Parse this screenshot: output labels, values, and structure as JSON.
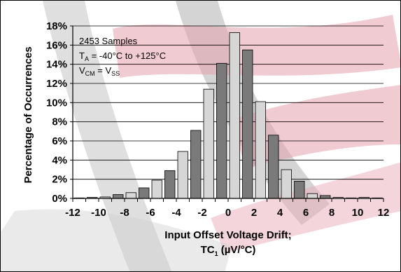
{
  "chart_data": {
    "type": "bar",
    "x_label_line1": "Input Offset Voltage Drift;",
    "x_label_line2_main": "TC",
    "x_label_line2_sub": "1",
    "x_label_line2_unit": " (µV/°C)",
    "ylabel": "Percentage of Occurrences",
    "ylim": [
      0,
      18
    ],
    "xlim": [
      -12,
      12
    ],
    "y_ticks": [
      "0%",
      "2%",
      "4%",
      "6%",
      "8%",
      "10%",
      "12%",
      "14%",
      "16%",
      "18%"
    ],
    "x_ticks": [
      "-12",
      "-10",
      "-8",
      "-6",
      "-4",
      "-2",
      "0",
      "2",
      "4",
      "6",
      "8",
      "10",
      "12"
    ],
    "bin_width": 1,
    "bins": [
      {
        "x": -11.5,
        "value": 0.05
      },
      {
        "x": -10.5,
        "value": 0.1
      },
      {
        "x": -9.5,
        "value": 0.15
      },
      {
        "x": -8.5,
        "value": 0.4
      },
      {
        "x": -7.5,
        "value": 0.6
      },
      {
        "x": -6.5,
        "value": 1.1
      },
      {
        "x": -5.5,
        "value": 1.9
      },
      {
        "x": -4.5,
        "value": 2.9
      },
      {
        "x": -3.5,
        "value": 4.9
      },
      {
        "x": -2.5,
        "value": 7.1
      },
      {
        "x": -1.5,
        "value": 11.4
      },
      {
        "x": -0.5,
        "value": 14.1
      },
      {
        "x": 0.5,
        "value": 17.3
      },
      {
        "x": 1.5,
        "value": 15.5
      },
      {
        "x": 2.5,
        "value": 10.1
      },
      {
        "x": 3.5,
        "value": 6.6
      },
      {
        "x": 4.5,
        "value": 3.0
      },
      {
        "x": 5.5,
        "value": 1.8
      },
      {
        "x": 6.5,
        "value": 0.5
      },
      {
        "x": 7.5,
        "value": 0.3
      },
      {
        "x": 8.5,
        "value": 0.1
      },
      {
        "x": 9.5,
        "value": 0.05
      },
      {
        "x": 10.5,
        "value": 0.1
      },
      {
        "x": 11.5,
        "value": 0.05
      }
    ],
    "bar_color_dark": "#7a7a7a",
    "bar_color_light": "#d6d6d6",
    "grid": true,
    "annotations": {
      "line1": "2453 Samples",
      "line2_main": "T",
      "line2_sub": "A",
      "line2_rest": " = -40°C to +125°C",
      "line3_main1": "V",
      "line3_sub1": "CM",
      "line3_mid": " = V",
      "line3_sub2": "SS"
    }
  },
  "watermark_colors": {
    "gray": "#bdbdbd",
    "pink": "#e7a9b4"
  }
}
